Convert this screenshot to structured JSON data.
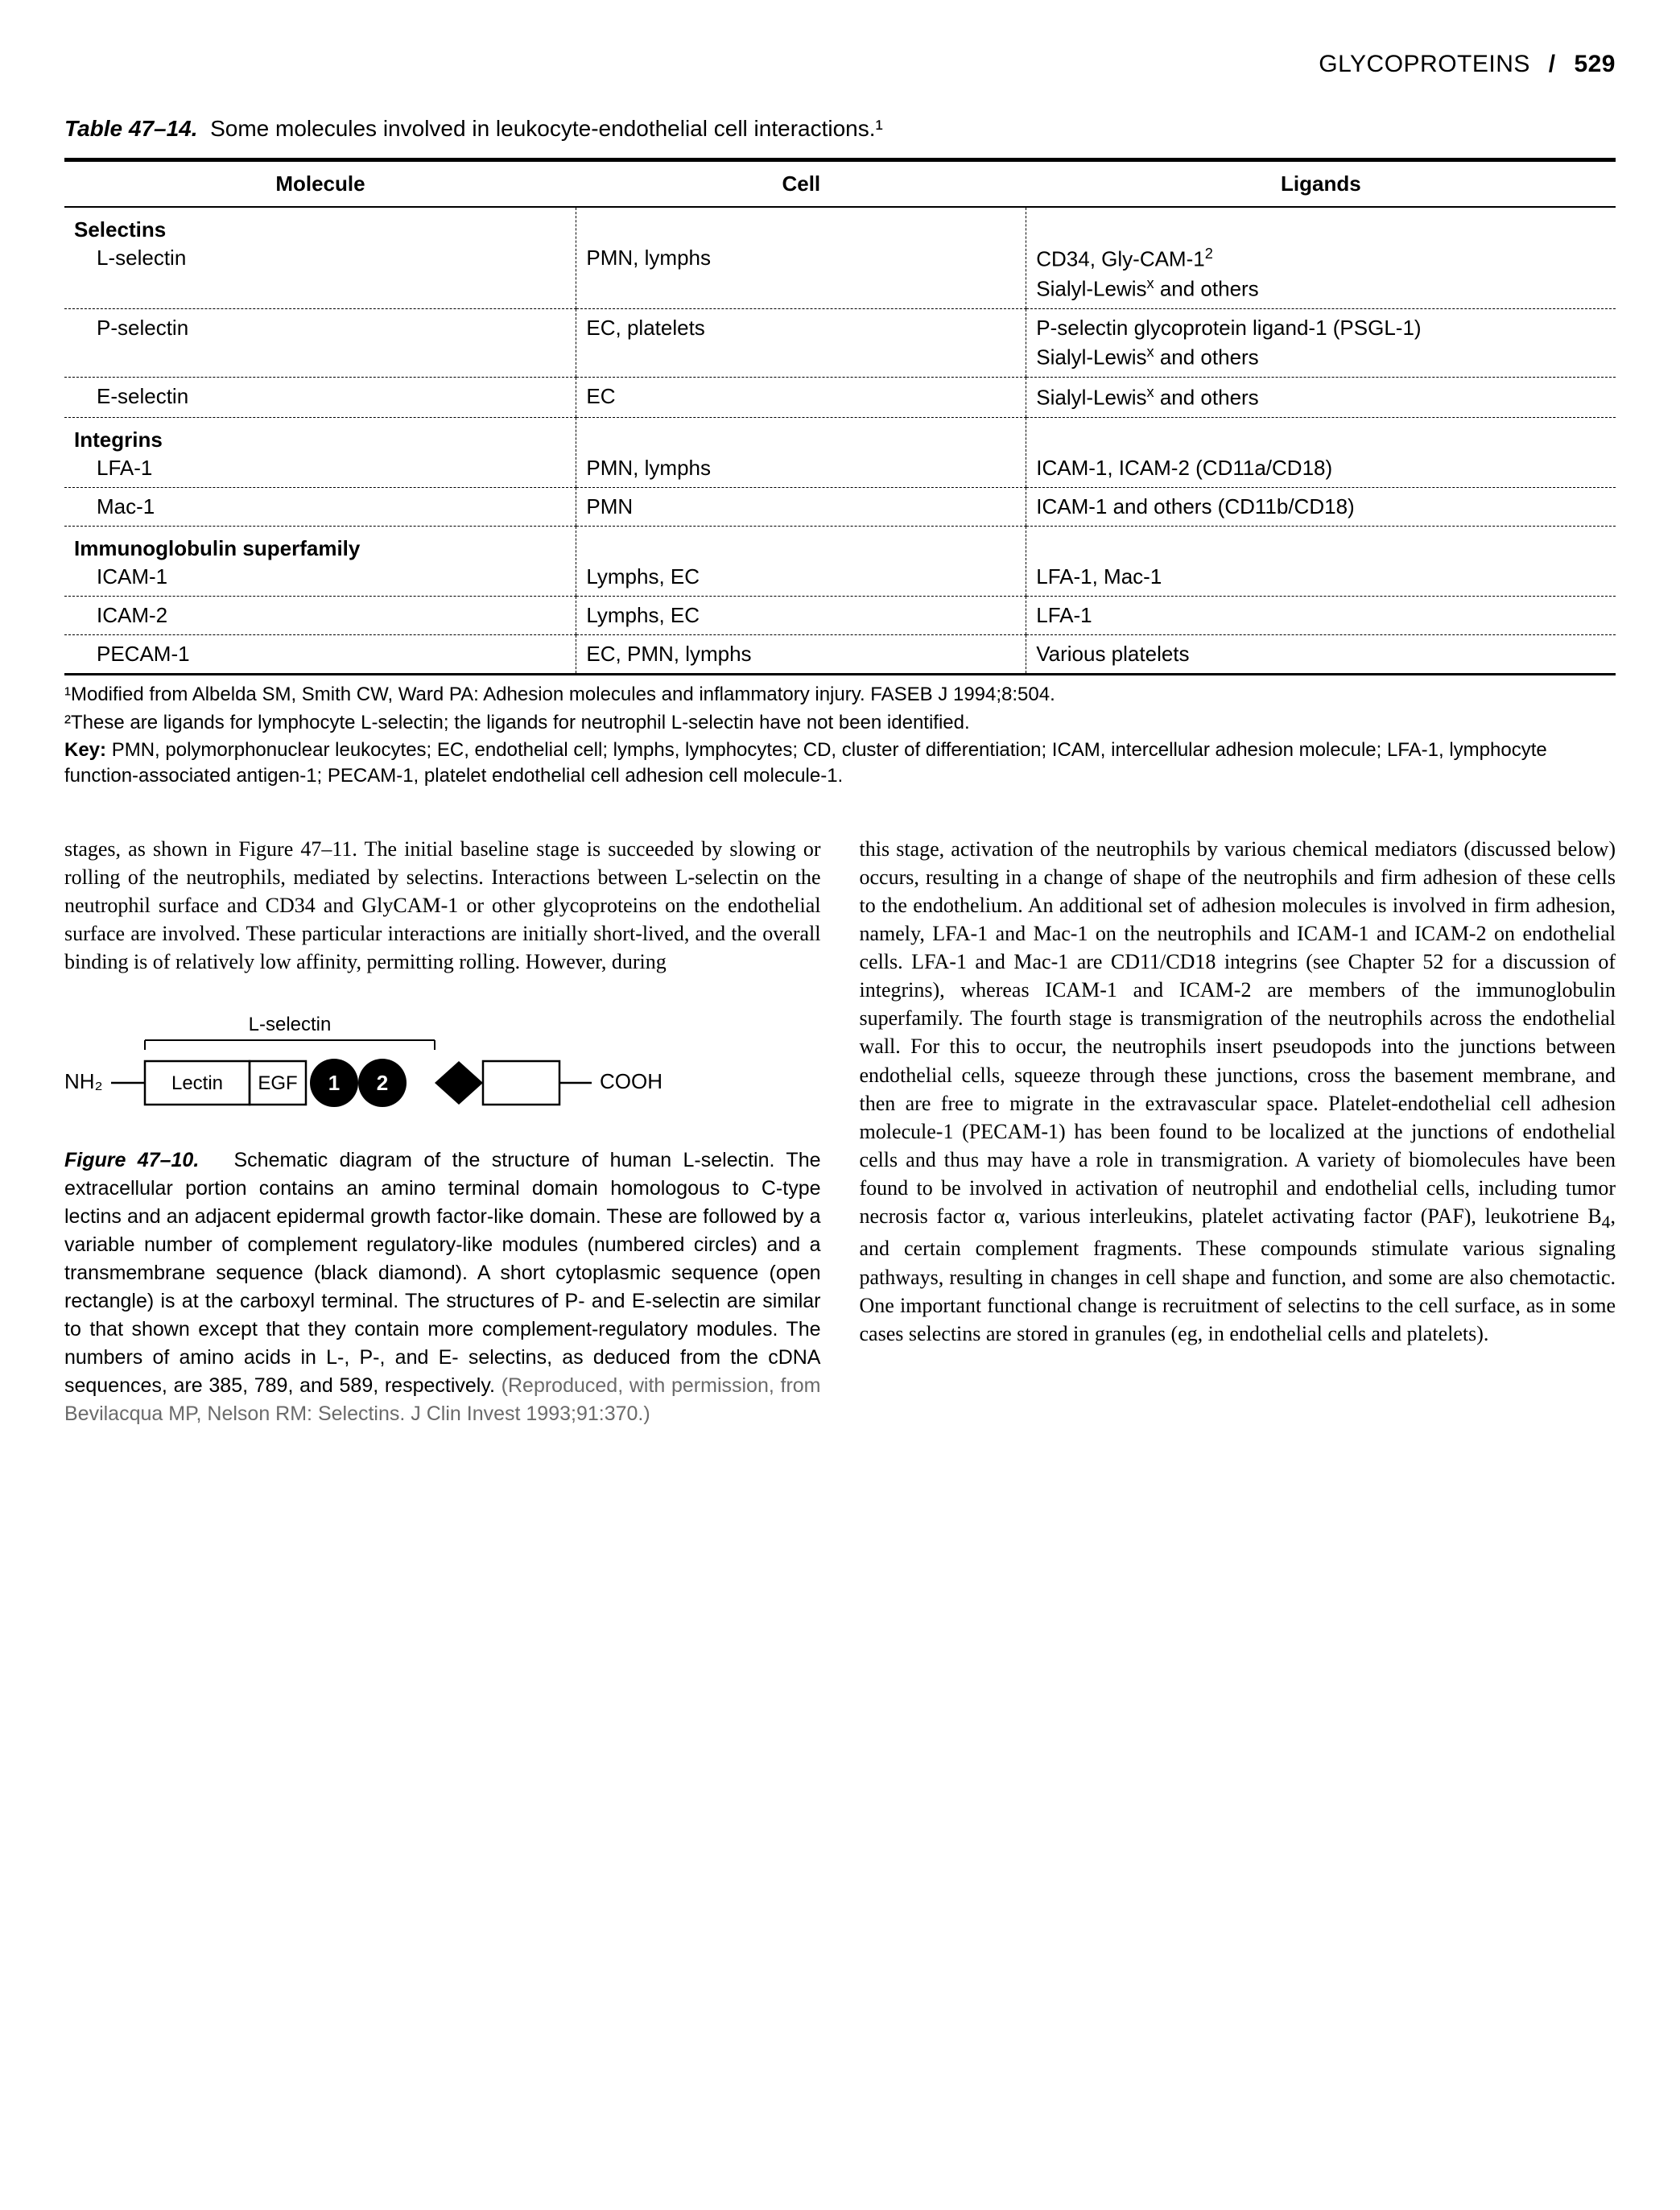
{
  "header": {
    "section": "GLYCOPROTEINS",
    "page_number": "529"
  },
  "table": {
    "title_prefix": "Table 47–14.",
    "title_rest": "Some molecules involved in leukocyte-endothelial cell interactions.¹",
    "columns": [
      "Molecule",
      "Cell",
      "Ligands"
    ],
    "col_widths_pct": [
      33,
      29,
      38
    ],
    "rows": [
      {
        "type": "section",
        "label": "Selectins"
      },
      {
        "molecule_indent": "L-selectin",
        "cell": "PMN, lymphs",
        "ligands_html": "CD34, Gly-CAM-1<span class='sup'>2</span><br>Sialyl-Lewis<span class='sup'>x</span> and others"
      },
      {
        "molecule_indent": "P-selectin",
        "cell": "EC, platelets",
        "ligands_html": "P-selectin glycoprotein ligand-1 (PSGL-1)<br>Sialyl-Lewis<span class='sup'>x</span> and others"
      },
      {
        "molecule_indent": "E-selectin",
        "cell": "EC",
        "ligands_html": "Sialyl-Lewis<span class='sup'>x</span> and others"
      },
      {
        "type": "section",
        "label": "Integrins"
      },
      {
        "molecule_indent": "LFA-1",
        "cell": "PMN, lymphs",
        "ligands_html": "ICAM-1, ICAM-2 (CD11a/CD18)"
      },
      {
        "molecule_indent": "Mac-1",
        "cell": "PMN",
        "ligands_html": "ICAM-1 and others (CD11b/CD18)"
      },
      {
        "type": "section",
        "label": "Immunoglobulin superfamily"
      },
      {
        "molecule_indent": "ICAM-1",
        "cell": "Lymphs, EC",
        "ligands_html": "LFA-1, Mac-1"
      },
      {
        "molecule_indent": "ICAM-2",
        "cell": "Lymphs, EC",
        "ligands_html": "LFA-1"
      },
      {
        "molecule_indent": "PECAM-1",
        "cell": "EC, PMN, lymphs",
        "ligands_html": "Various platelets",
        "last": true
      }
    ],
    "footnotes": [
      "¹Modified from Albelda SM, Smith CW, Ward PA: Adhesion molecules and inflammatory injury. FASEB J 1994;8:504.",
      "²These are ligands for lymphocyte L-selectin; the ligands for neutrophil L-selectin have not been identified."
    ],
    "key_html": "<b>Key:</b> PMN, polymorphonuclear leukocytes; EC, endothelial cell; lymphs, lymphocytes; CD, cluster of differentiation; ICAM, intercellular adhesion molecule; LFA-1, lymphocyte function-associated antigen-1; PECAM-1, platelet endothelial cell adhesion cell molecule-1."
  },
  "body": {
    "left_html": "stages, as shown in Figure 47–11. The initial baseline stage is succeeded by slowing or rolling of the neutrophils, mediated by selectins. Interactions between L-selectin on the neutrophil surface and CD34 and GlyCAM-1 or other glycoproteins on the endothelial surface are involved. These particular interactions are initially short-lived, and the overall binding is of relatively low affinity, permitting rolling. However, during",
    "right_html": "this stage, activation of the neutrophils by various chemical mediators (discussed below) occurs, resulting in a change of shape of the neutrophils and firm adhesion of these cells to the endothelium. An additional set of adhesion molecules is involved in firm adhesion, namely, LFA-1 and Mac-1 on the neutrophils and ICAM-1 and ICAM-2 on endothelial cells. LFA-1 and Mac-1 are CD11/CD18 integrins (see Chapter 52 for a discussion of integrins), whereas ICAM-1 and ICAM-2 are members of the immunoglobulin superfamily. The fourth stage is transmigration of the neutrophils across the endothelial wall. For this to occur, the neutrophils insert pseudopods into the junctions between endothelial cells, squeeze through these junctions, cross the basement membrane, and then are free to migrate in the extravascular space. Platelet-endothelial cell adhesion molecule-1 (PECAM-1) has been found to be localized at the junctions of endothelial cells and thus may have a role in transmigration. A variety of biomolecules have been found to be involved in activation of neutrophil and endothelial cells, including tumor necrosis factor α, various interleukins, platelet activating factor (PAF), leukotriene B<sub>4</sub>, and certain complement fragments. These compounds stimulate various signaling pathways, resulting in changes in cell shape and function, and some are also chemotactic. One important functional change is recruitment of selectins to the cell surface, as in some cases selectins are stored in granules (eg, in endothelial cells and platelets)."
  },
  "figure": {
    "label_top": "L-selectin",
    "nh2": "NH₂",
    "cooh": "COOH",
    "lectin": "Lectin",
    "egf": "EGF",
    "circle1": "1",
    "circle2": "2",
    "caption_prefix": "Figure 47–10.",
    "caption_rest": "Schematic diagram of the structure of human L-selectin. The extracellular portion contains an amino terminal domain homologous to C-type lectins and an adjacent epidermal growth factor-like domain. These are followed by a variable number of complement regulatory-like modules (numbered circles) and a transmembrane sequence (black diamond). A short cytoplasmic sequence (open rectangle) is at the carboxyl terminal. The structures of P- and E-selectin are similar to that shown except that they contain more complement-regulatory modules. The numbers of amino acids in L-, P-, and E- selectins, as deduced from the cDNA sequences, are 385, 789, and 589, respectively.",
    "caption_credit": "(Reproduced, with permission, from Bevilacqua MP, Nelson RM: Selectins. J Clin Invest 1993;91:370.)",
    "colors": {
      "stroke": "#000000",
      "circle_fill": "#000000",
      "circle_text": "#ffffff"
    }
  }
}
